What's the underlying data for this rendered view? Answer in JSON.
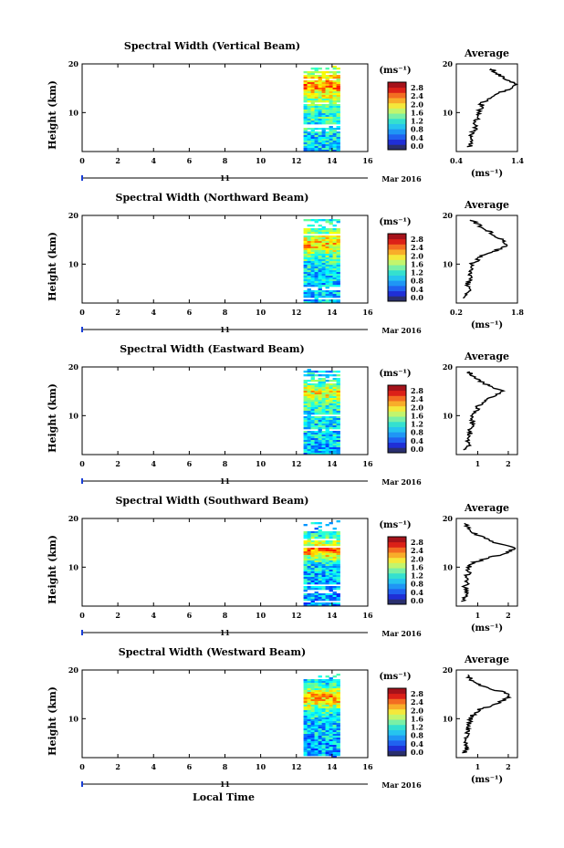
{
  "figure": {
    "bottom_xlabel": "Local Time"
  },
  "chart_data": [
    {
      "type": "heatmap",
      "title": "Spectral Width (Vertical Beam)",
      "ylabel": "Height (km)",
      "xlim": [
        0,
        16
      ],
      "ylim": [
        2,
        20
      ],
      "x_ticks": [
        "0",
        "2",
        "4",
        "6",
        "8",
        "10",
        "12",
        "14",
        "16"
      ],
      "y_ticks": [
        "20",
        "10"
      ],
      "data_x_range": [
        12.4,
        14.4
      ],
      "date_label": "11",
      "month_label": "Mar 2016",
      "colorbar": {
        "unit": "(ms⁻¹)",
        "labels": [
          "0.0",
          "0.4",
          "0.8",
          "1.2",
          "1.6",
          "2.0",
          "2.4",
          "2.8"
        ]
      },
      "average": {
        "title": "Average",
        "xlabel": "(ms⁻¹)",
        "xlim": [
          0.4,
          1.4
        ],
        "x_ticks": [
          "0.4",
          "1.4"
        ],
        "y_ticks": [
          "20",
          "10"
        ],
        "height": [
          3,
          4,
          5,
          6,
          7,
          8,
          9,
          10,
          11,
          12,
          13,
          14,
          15,
          16,
          17,
          18,
          19
        ],
        "value": [
          0.62,
          0.65,
          0.62,
          0.68,
          0.72,
          0.66,
          0.78,
          0.74,
          0.84,
          0.8,
          0.98,
          1.08,
          1.3,
          1.36,
          1.18,
          1.08,
          0.96
        ]
      }
    },
    {
      "type": "heatmap",
      "title": "Spectral Width (Northward Beam)",
      "ylabel": "Height (km)",
      "xlim": [
        0,
        16
      ],
      "ylim": [
        2,
        20
      ],
      "x_ticks": [
        "0",
        "2",
        "4",
        "6",
        "8",
        "10",
        "12",
        "14",
        "16"
      ],
      "y_ticks": [
        "20",
        "10"
      ],
      "data_x_range": [
        12.4,
        14.4
      ],
      "date_label": "11",
      "month_label": "Mar 2016",
      "colorbar": {
        "unit": "(ms⁻¹)",
        "labels": [
          "0.0",
          "0.4",
          "0.8",
          "1.2",
          "1.6",
          "2.0",
          "2.4",
          "2.8"
        ]
      },
      "average": {
        "title": "Average",
        "xlabel": "(ms⁻¹)",
        "xlim": [
          0.2,
          1.8
        ],
        "x_ticks": [
          "0.2",
          "1.8"
        ],
        "y_ticks": [
          "20",
          "10"
        ],
        "height": [
          3,
          4,
          5,
          6,
          7,
          8,
          9,
          10,
          11,
          12,
          13,
          14,
          15,
          16,
          17,
          18,
          19
        ],
        "value": [
          0.45,
          0.48,
          0.52,
          0.5,
          0.58,
          0.55,
          0.62,
          0.6,
          0.78,
          0.9,
          1.3,
          1.55,
          1.4,
          1.2,
          1.0,
          0.8,
          0.6
        ]
      }
    },
    {
      "type": "heatmap",
      "title": "Spectral Width (Eastward Beam)",
      "ylabel": "Height (km)",
      "xlim": [
        0,
        16
      ],
      "ylim": [
        2,
        20
      ],
      "x_ticks": [
        "0",
        "2",
        "4",
        "6",
        "8",
        "10",
        "12",
        "14",
        "16"
      ],
      "y_ticks": [
        "20",
        "10"
      ],
      "data_x_range": [
        12.4,
        14.4
      ],
      "date_label": "11",
      "month_label": "Mar 2016",
      "colorbar": {
        "unit": "(ms⁻¹)",
        "labels": [
          "0.0",
          "0.4",
          "0.8",
          "1.2",
          "1.6",
          "2.0",
          "2.4",
          "2.8"
        ]
      },
      "average": {
        "title": "Average",
        "xlabel": "",
        "xlim": [
          0.3,
          2.3
        ],
        "x_ticks": [
          "1",
          "2"
        ],
        "x_tick_values": [
          1,
          2
        ],
        "y_ticks": [
          "20",
          "10"
        ],
        "height": [
          3,
          4,
          5,
          6,
          7,
          8,
          9,
          10,
          11,
          12,
          13,
          14,
          15,
          16,
          17,
          18,
          19
        ],
        "value": [
          0.62,
          0.7,
          0.68,
          0.75,
          0.72,
          0.8,
          0.85,
          0.82,
          0.95,
          1.0,
          1.2,
          1.5,
          1.8,
          1.4,
          1.1,
          0.9,
          0.7
        ]
      }
    },
    {
      "type": "heatmap",
      "title": "Spectral Width (Southward Beam)",
      "ylabel": "Height (km)",
      "xlim": [
        0,
        16
      ],
      "ylim": [
        2,
        20
      ],
      "x_ticks": [
        "0",
        "2",
        "4",
        "6",
        "8",
        "10",
        "12",
        "14",
        "16"
      ],
      "y_ticks": [
        "20",
        "10"
      ],
      "data_x_range": [
        12.4,
        14.4
      ],
      "date_label": "11",
      "month_label": "Mar 2016",
      "colorbar": {
        "unit": "(ms⁻¹)",
        "labels": [
          "0.0",
          "0.4",
          "0.8",
          "1.2",
          "1.6",
          "2.0",
          "2.4",
          "2.8"
        ]
      },
      "average": {
        "title": "Average",
        "xlabel": "(ms⁻¹)",
        "xlim": [
          0.3,
          2.3
        ],
        "x_ticks": [
          "1",
          "2"
        ],
        "x_tick_values": [
          1,
          2
        ],
        "y_ticks": [
          "20",
          "10"
        ],
        "height": [
          3,
          4,
          5,
          6,
          7,
          8,
          9,
          10,
          11,
          12,
          13,
          14,
          15,
          16,
          17,
          18,
          19
        ],
        "value": [
          0.55,
          0.6,
          0.62,
          0.58,
          0.65,
          0.62,
          0.7,
          0.72,
          0.9,
          1.4,
          2.0,
          2.2,
          1.6,
          1.2,
          0.9,
          0.7,
          0.6
        ]
      }
    },
    {
      "type": "heatmap",
      "title": "Spectral Width (Westward Beam)",
      "ylabel": "Height (km)",
      "xlim": [
        0,
        16
      ],
      "ylim": [
        2,
        20
      ],
      "x_ticks": [
        "0",
        "2",
        "4",
        "6",
        "8",
        "10",
        "12",
        "14",
        "16"
      ],
      "y_ticks": [
        "20",
        "10"
      ],
      "data_x_range": [
        12.4,
        14.4
      ],
      "date_label": "11",
      "month_label": "Mar 2016",
      "colorbar": {
        "unit": "(ms⁻¹)",
        "labels": [
          "0.0",
          "0.4",
          "0.8",
          "1.2",
          "1.6",
          "2.0",
          "2.4",
          "2.8"
        ]
      },
      "average": {
        "title": "Average",
        "xlabel": "(ms⁻¹)",
        "xlim": [
          0.3,
          2.3
        ],
        "x_ticks": [
          "1",
          "2"
        ],
        "x_tick_values": [
          1,
          2
        ],
        "y_ticks": [
          "20",
          "10"
        ],
        "height": [
          3,
          4,
          5,
          6,
          7,
          8,
          9,
          10,
          11,
          12,
          13,
          14,
          15,
          16,
          17,
          18,
          19
        ],
        "value": [
          0.58,
          0.62,
          0.6,
          0.65,
          0.68,
          0.66,
          0.72,
          0.75,
          0.88,
          1.1,
          1.6,
          1.9,
          2.1,
          1.5,
          1.0,
          0.8,
          0.62
        ]
      }
    }
  ]
}
